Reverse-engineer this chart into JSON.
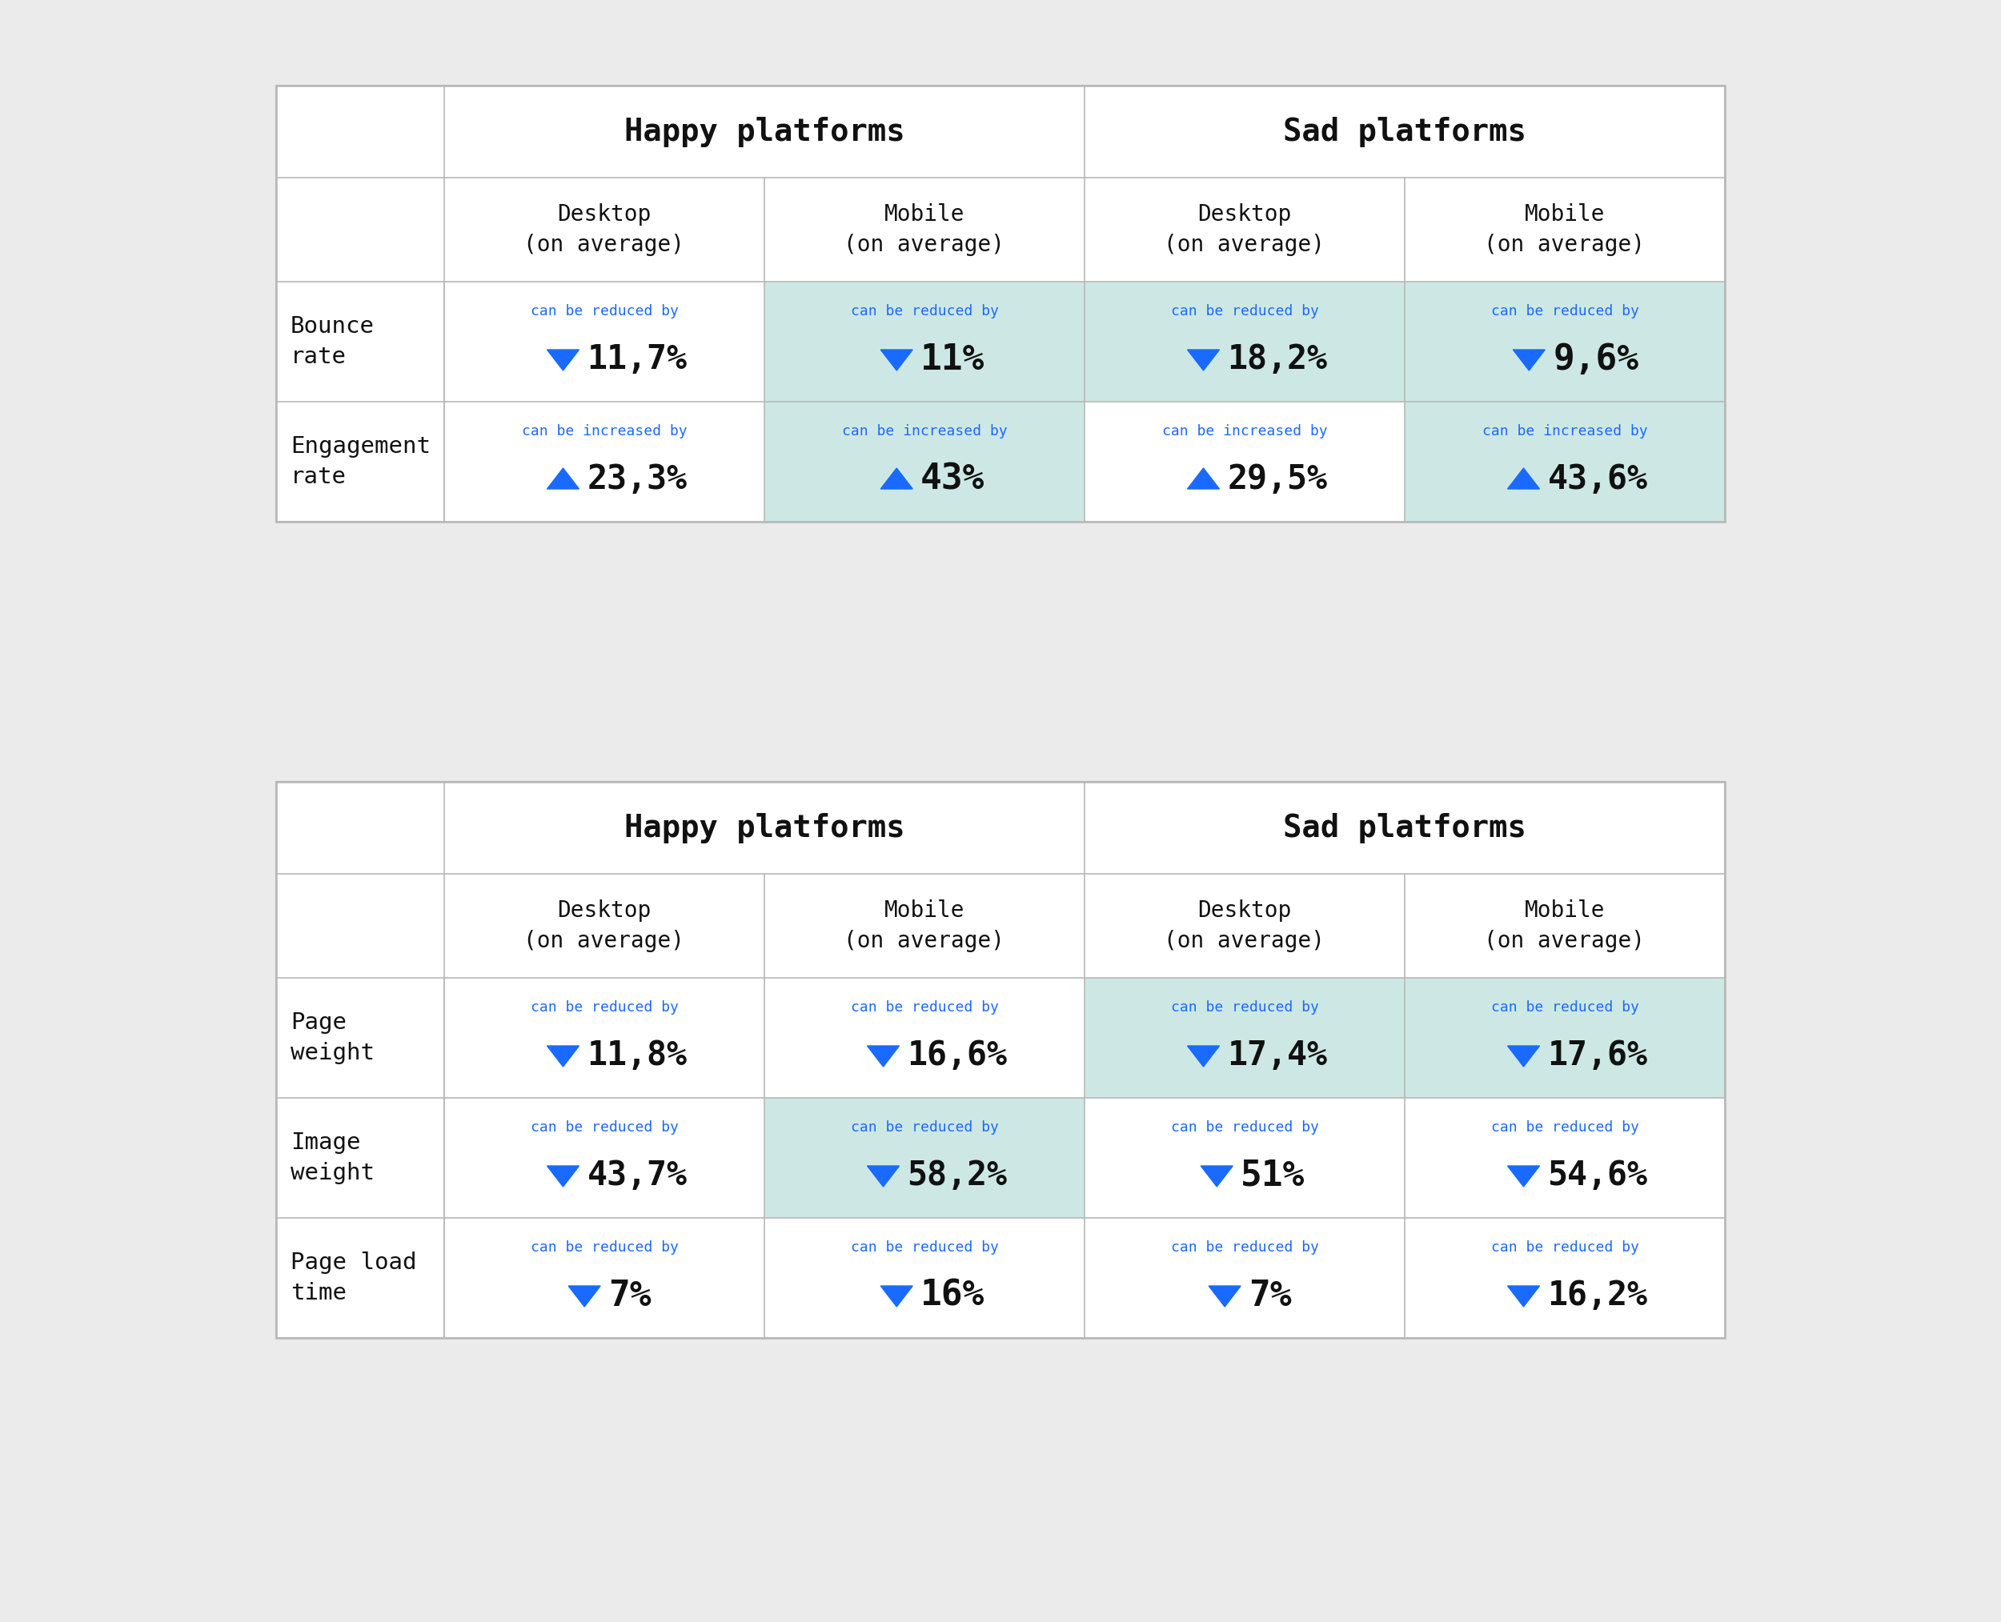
{
  "bg_color": "#ebebeb",
  "table_bg": "#ffffff",
  "highlight_bg": "#cde8e4",
  "border_color": "#b8b8b8",
  "blue_text": "#1a6aff",
  "black_text": "#111111",
  "table1": {
    "title_happy": "Happy platforms",
    "title_sad": "Sad platforms",
    "col_headers": [
      "Desktop\n(on average)",
      "Mobile\n(on average)",
      "Desktop\n(on average)",
      "Mobile\n(on average)"
    ],
    "rows": [
      {
        "label": "Bounce\nrate",
        "direction": "down",
        "label_text": "can be reduced by",
        "values": [
          "11,7%",
          "11%",
          "18,2%",
          "9,6%"
        ],
        "highlight": [
          false,
          true,
          true,
          true
        ]
      },
      {
        "label": "Engagement\nrate",
        "direction": "up",
        "label_text": "can be increased by",
        "values": [
          "23,3%",
          "43%",
          "29,5%",
          "43,6%"
        ],
        "highlight": [
          false,
          true,
          false,
          true
        ]
      }
    ]
  },
  "table2": {
    "title_happy": "Happy platforms",
    "title_sad": "Sad platforms",
    "col_headers": [
      "Desktop\n(on average)",
      "Mobile\n(on average)",
      "Desktop\n(on average)",
      "Mobile\n(on average)"
    ],
    "rows": [
      {
        "label": "Page\nweight",
        "direction": "down",
        "label_text": "can be reduced by",
        "values": [
          "11,8%",
          "16,6%",
          "17,4%",
          "17,6%"
        ],
        "highlight": [
          false,
          false,
          true,
          true
        ]
      },
      {
        "label": "Image\nweight",
        "direction": "down",
        "label_text": "can be reduced by",
        "values": [
          "43,7%",
          "58,2%",
          "51%",
          "54,6%"
        ],
        "highlight": [
          false,
          true,
          false,
          false
        ]
      },
      {
        "label": "Page load\ntime",
        "direction": "down",
        "label_text": "can be reduced by",
        "values": [
          "7%",
          "16%",
          "7%",
          "16,2%"
        ],
        "highlight": [
          false,
          false,
          false,
          false
        ]
      }
    ]
  }
}
